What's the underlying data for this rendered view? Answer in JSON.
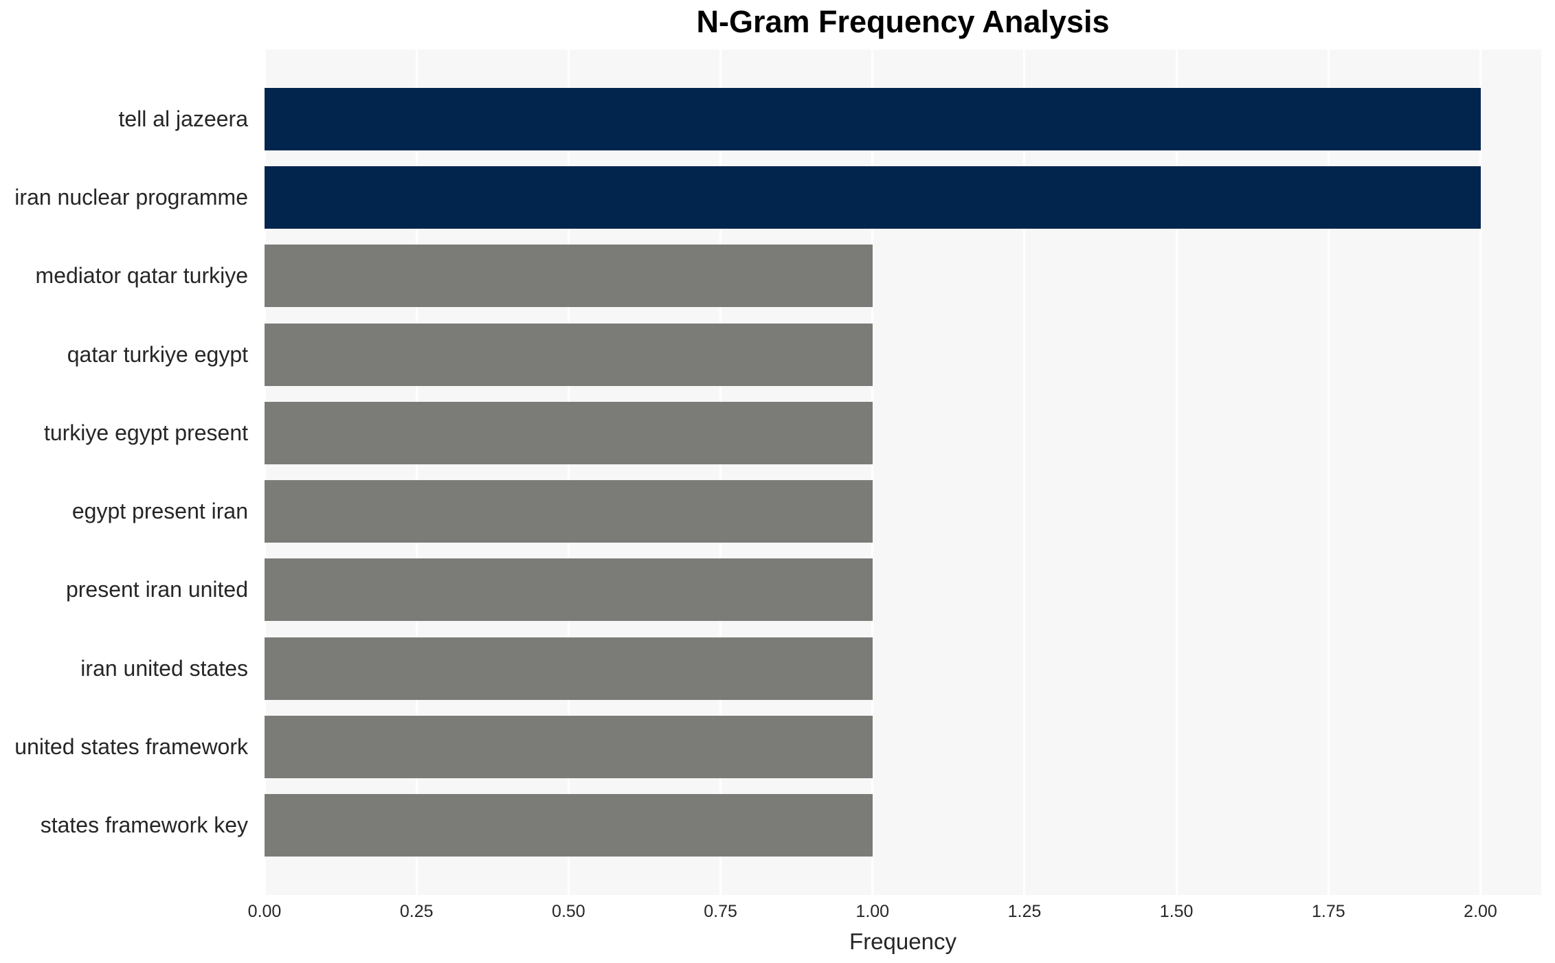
{
  "chart_data": {
    "type": "bar",
    "orientation": "horizontal",
    "title": "N-Gram Frequency Analysis",
    "xlabel": "Frequency",
    "ylabel": "",
    "categories": [
      "tell al jazeera",
      "iran nuclear programme",
      "mediator qatar turkiye",
      "qatar turkiye egypt",
      "turkiye egypt present",
      "egypt present iran",
      "present iran united",
      "iran united states",
      "united states framework",
      "states framework key"
    ],
    "values": [
      2,
      2,
      1,
      1,
      1,
      1,
      1,
      1,
      1,
      1
    ],
    "bar_colors": [
      "#02254d",
      "#02254d",
      "#7b7b78",
      "#7b7b78",
      "#7b7b78",
      "#7b7b78",
      "#7b7b78",
      "#7b7b78",
      "#7b7b78",
      "#7b7b78"
    ],
    "xlim": [
      0,
      2.1
    ],
    "xticks": [
      0,
      0.25,
      0.5,
      0.75,
      1.0,
      1.25,
      1.5,
      1.75,
      2.0
    ],
    "xtick_labels": [
      "0.00",
      "0.25",
      "0.50",
      "0.75",
      "1.00",
      "1.25",
      "1.50",
      "1.75",
      "2.00"
    ],
    "grid": "vertical",
    "legend_position": "none",
    "colors": {
      "highlight": "#02254d",
      "default": "#7b7b78",
      "plot_background": "#f7f7f7",
      "gridline": "#ffffff",
      "tick_text": "#262626",
      "label_text": "#262626",
      "title_text": "#000000",
      "figure_background": "#ffffff"
    }
  }
}
